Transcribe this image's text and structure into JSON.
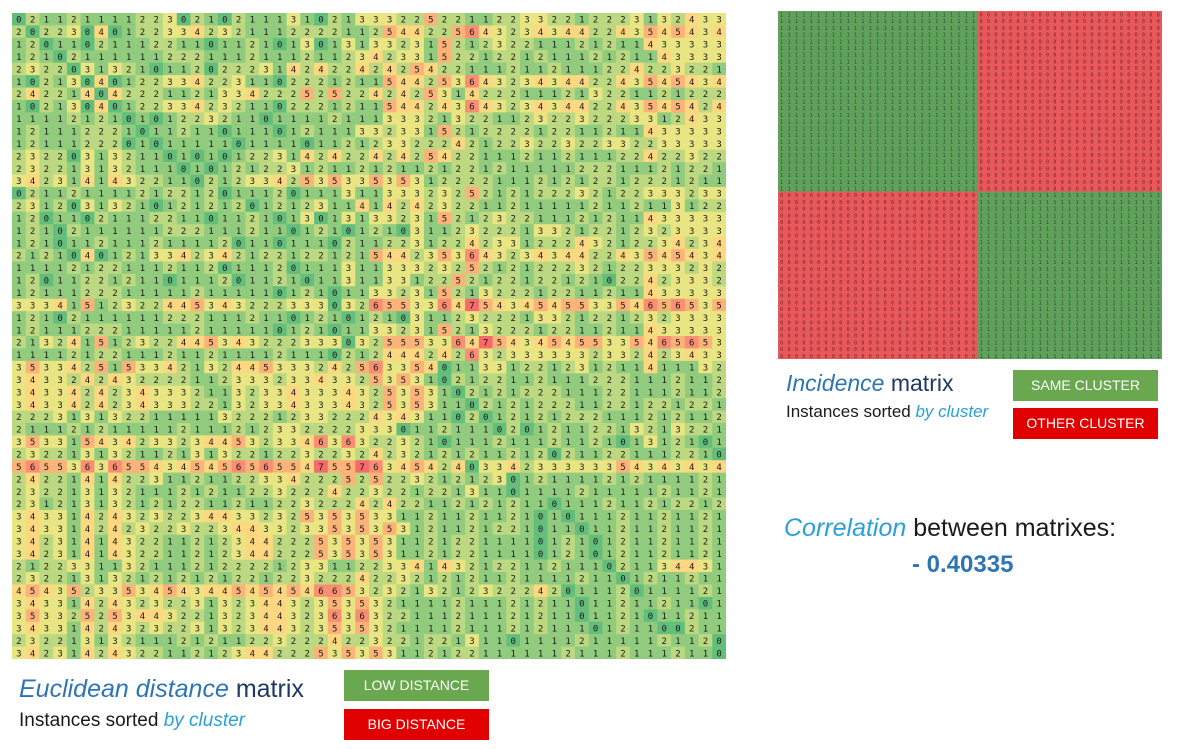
{
  "colors": {
    "accent": "#2aa0d8",
    "title_dark": "#1f3864",
    "same_cluster": "#5fa05b",
    "other_cluster": "#e8575a",
    "low_distance": "#6aa84f",
    "big_distance": "#e00000",
    "heat_low": "#63be7b",
    "heat_mid": "#ffeb84",
    "heat_high": "#f8696b"
  },
  "euclidean": {
    "title_accent": "Euclidean distance",
    "title_rest": " matrix",
    "subtitle_prefix": "Instances sorted ",
    "subtitle_accent": "by cluster",
    "legend_low": "LOW DISTANCE",
    "legend_high": "BIG DISTANCE",
    "rows": [
      "0 2 1 1 2 1 1 1 1 2 2 3 0 2 1 0 2 1 1 1 3 1 0 2 1 3 3 3 2 2 5 2 2 1 1 2 2 3 3 2 2 1 2 2 2 3 1 3 2 4 3 3 3 2",
      "2 0 2 2 3 0 4 0 1 2 2 3 3 4 2 3 2 1 1 1 2 2 2 2 1 1 2 5 4 4 2 2 5 6 4 3 2 3 4 3 4 4 2 2 4 3 5 4 5 4 3 4",
      "1 2 0 1 1 0 2 1 1 1 2 2 1 1 0 1 1 2 1 0 1 3 0 1 3 1 3 3 2 3 1 5 2 1 2 3 2 2 1 1 1 2 1 2 1 1 4 3 3 3 3 3",
      "1 2 1 0 2 1 1 1 1 1 1 2 2 2 1 1 1 2 1 1 1 2 1 1 2 3 4 2 3 3 1 5 2 2 1 2 2 1 2 1 1 1 2 1 2 1 1 4 3 3 3 3",
      "2 3 2 2 0 3 1 3 2 1 0 1 1 2 0 2 2 2 3 1 4 2 4 2 2 4 2 4 2 5 4 2 2 1 1 1 2 1 1 2 1 1 1 2 2 4 2 2 3 2 2 1",
      "1 0 2 1 3 0 4 0 1 2 2 3 3 4 2 2 3 1 1 0 2 2 2 1 2 1 1 5 4 4 2 5 3 6 4 3 2 3 4 3 4 4 2 2 4 3 5 4 5 4 3 4",
      "2 4 2 2 1 4 0 4 2 2 2 1 1 2 1 3 3 4 2 2 2 5 2 5 2 2 4 2 4 2 5 3 1 4 2 2 2 1 1 1 2 1 3 2 2 1 1 2 1 2 2 2",
      "1 0 2 1 3 0 4 0 1 2 2 3 3 4 2 3 2 1 1 0 2 2 2 1 2 1 1 5 4 4 2 4 3 6 4 3 2 3 4 3 4 4 2 2 4 3 5 4 5 4 2 4",
      "1 1 1 1 2 1 2 1 0 1 0 1 2 2 3 2 1 1 0 1 1 1 1 2 1 1 1 3 3 3 2 1 3 2 2 1 1 2 3 2 2 3 2 2 2 3 3 1 2 4 3 3",
      "1 2 1 1 1 2 2 2 1 0 1 1 2 1 1 0 1 1 1 0 1 2 1 1 1 3 3 2 3 3 1 5 2 1 2 2 2 2 1 2 2 1 1 2 1 1 4 3 3 3 3 3",
      "1 2 1 1 1 2 2 2 0 1 0 1 1 1 1 1 0 1 1 1 1 0 1 1 2 1 2 3 3 2 2 2 4 2 1 2 2 3 2 2 3 2 2 3 3 2 2 3 3 3 3 3",
      "2 3 2 2 0 3 1 3 2 1 1 0 1 0 1 0 1 2 2 3 1 4 2 4 2 2 4 2 4 2 5 4 2 2 1 1 1 2 1 1 2 1 1 1 2 2 4 2 2 3 2 2",
      "2 3 2 2 1 3 1 3 2 1 1 1 0 1 0 1 2 1 2 2 3 1 2 1 1 2 1 2 1 1 2 1 2 2 1 2 1 1 1 1 1 2 2 2 1 1 1 2 1 2 2 1",
      "3 4 2 3 1 4 1 4 3 2 2 1 1 0 2 1 2 3 3 4 2 5 3 5 3 3 5 3 5 3 1 2 2 2 2 1 1 1 2 1 2 1 2 2 1 2 2 2 1 2 1 1",
      "0 2 1 1 2 1 1 1 1 2 1 2 2 1 2 0 1 1 1 2 0 1 1 1 3 1 1 3 3 3 2 3 2 5 2 1 2 1 2 2 2 3 2 1 2 2 3 3 3 2 3 3",
      "2 3 1 2 0 3 1 3 2 1 0 1 2 1 2 1 2 0 1 2 1 2 3 1 1 4 1 4 2 4 2 3 2 2 1 1 2 1 1 1 1 1 2 1 1 2 1 1 3 1 2 2",
      "1 2 0 1 1 0 2 1 1 1 2 2 1 1 0 1 1 2 1 0 1 3 0 1 3 1 3 3 2 3 1 5 2 1 2 3 2 2 1 1 1 2 1 2 1 1 4 3 3 3 3 3",
      "1 2 1 0 2 1 1 1 1 1 1 2 2 2 1 1 1 2 1 1 0 1 2 1 0 1 2 1 0 3 1 1 2 3 2 2 2 1 3 3 2 1 2 2 1 2 3 2 3 3 3 3",
      "1 2 1 0 1 1 2 1 1 1 2 1 1 1 1 2 0 1 1 0 1 1 1 0 2 1 1 2 2 3 1 2 2 4 2 3 3 1 2 2 2 4 3 2 1 2 2 3 4 2 3 4",
      "2 1 2 1 0 4 0 1 2 1 3 3 4 2 3 4 2 1 2 2 1 2 2 1 2 1 5 4 4 2 3 5 3 6 4 3 2 3 4 3 4 4 2 2 4 3 5 4 5 4 3 4",
      "1 1 1 1 2 1 2 2 1 1 1 2 1 1 2 0 1 1 1 2 0 1 1 1 3 1 1 3 3 3 2 3 2 5 2 1 2 1 2 2 2 3 2 1 2 2 3 3 3 2 3 2",
      "1 2 0 1 1 2 2 1 2 1 1 0 1 1 1 2 0 1 1 2 1 0 1 1 3 1 1 3 3 1 2 2 5 2 1 2 2 1 2 2 1 2 1 0 2 2 4 2 3 3 3 2",
      "1 2 1 1 1 2 2 2 1 1 1 1 1 2 1 1 1 1 1 0 1 2 1 0 1 1 3 3 2 3 1 5 2 1 3 2 2 2 1 2 2 1 1 2 1 1 4 3 3 3 3 3",
      "3 3 3 4 1 5 1 2 3 2 2 4 4 5 3 4 3 2 2 2 3 3 3 0 3 2 6 5 5 3 3 6 4 7 5 4 3 4 5 4 5 5 3 3 5 4 6 5 6 5 3 5",
      "1 2 1 0 2 1 1 1 1 1 1 2 2 2 1 1 1 2 1 1 0 1 2 1 0 1 2 1 0 3 1 1 2 3 2 2 2 1 3 3 2 1 2 2 1 2 3 2 3 3 3 3",
      "1 2 1 1 1 2 2 2 1 1 1 1 1 2 1 1 1 1 1 0 1 2 1 0 1 1 3 3 2 3 1 5 2 1 3 2 2 2 1 2 2 1 1 2 1 1 4 3 3 3 3 3",
      "2 1 3 2 4 1 5 1 2 3 2 2 4 4 5 3 4 3 2 2 2 3 3 3 0 3 2 5 5 5 3 3 6 4 7 5 4 3 4 5 4 5 5 3 3 5 4 6 5 6 5 3",
      "1 1 1 1 2 1 2 2 1 1 1 2 1 1 2 1 1 1 1 2 1 1 1 0 2 1 2 4 4 4 2 4 2 6 3 2 3 3 3 3 3 3 2 3 3 2 4 2 3 4 3 3",
      "3 5 3 3 4 2 5 1 5 3 3 4 2 1 3 2 4 4 5 3 3 3 2 4 2 5 6 3 3 5 4 0 1 1 3 3 1 2 2 1 2 3 1 2 1 1 4 1 1 1 3 2",
      "3 4 3 3 2 4 2 4 3 2 2 2 2 1 1 2 3 3 3 2 3 3 4 3 3 2 5 3 5 3 1 0 2 1 2 2 1 1 2 1 1 1 2 2 2 1 1 1 2 1 1 2",
      "3 4 3 3 4 2 4 2 3 4 3 3 3 2 1 1 3 2 3 3 4 3 3 3 4 3 2 5 3 5 3 1 0 2 1 2 1 2 2 2 1 1 1 2 2 1 1 1 2 1 1 2",
      "3 4 3 3 4 2 4 2 3 4 3 3 3 2 2 1 3 2 3 3 4 3 3 3 4 3 2 5 3 5 3 1 1 0 2 1 2 1 2 2 2 1 1 2 2 1 2 2 1 2 2 1",
      "2 2 2 3 1 3 1 3 2 2 1 1 1 1 1 3 2 2 2 1 2 3 3 2 2 2 4 3 4 3 1 1 0 2 0 1 2 1 2 1 2 2 2 1 1 1 2 1 2 1 1 2",
      "2 1 1 1 2 1 2 1 1 1 1 1 2 1 1 1 2 1 2 3 3 2 2 2 2 3 3 3 0 1 1 2 1 1 1 0 2 0 1 2 1 1 2 2 1 3 2 1 3 2 2 1",
      "3 5 3 3 1 5 4 3 4 2 3 3 2 3 4 4 5 3 2 3 3 4 6 3 6 3 2 2 3 2 1 0 1 1 1 2 1 1 1 2 1 1 2 1 0 1 3 1 2 1 0 1",
      "2 3 2 2 1 3 1 3 2 1 1 2 1 3 1 3 2 2 1 2 2 3 2 2 3 2 4 2 3 2 1 2 1 2 1 1 2 1 2 0 2 1 1 2 2 1 1 1 2 2 1 0",
      "5 6 5 5 3 6 3 6 5 5 4 3 4 5 4 5 6 5 6 5 5 4 7 5 5 7 6 3 4 5 4 2 4 0 3 3 4 2 3 3 3 3 3 3 5 4 3 4 3 4 3 4",
      "2 4 2 2 1 4 1 4 2 2 3 1 1 2 1 1 2 2 3 3 4 2 2 2 5 2 5 2 2 3 2 1 2 1 2 3 0 1 2 1 1 1 1 2 1 2 1 1 1 1 2 1",
      "2 3 2 2 1 3 1 3 2 1 1 1 2 1 2 1 1 2 2 3 2 2 2 4 2 2 3 2 2 1 2 2 1 3 1 1 0 1 1 1 1 2 1 1 1 1 1 2 1 1 2 1",
      "2 3 1 2 1 3 1 3 2 1 2 1 2 2 1 1 2 1 1 2 2 3 2 2 2 4 2 4 2 2 1 1 2 1 2 1 2 1 1 0 1 1 1 2 1 1 2 1 2 2 1 2",
      "3 4 3 3 1 4 2 4 3 2 3 2 2 3 4 4 3 3 2 3 2 5 3 5 3 5 3 3 1 1 2 1 1 2 1 1 2 1 0 1 0 1 1 1 2 1 1 2 1 1 2 1",
      "3 4 3 3 1 4 2 4 2 3 2 2 3 2 2 3 4 4 3 3 2 3 3 5 3 5 3 5 3 1 2 1 1 2 1 2 2 1 0 1 1 0 1 1 2 1 1 2 1 1 2 1",
      "3 4 2 3 1 4 1 4 3 2 2 1 1 2 1 2 3 4 4 2 2 2 5 3 5 3 5 3 1 1 2 1 2 2 1 1 1 1 0 1 2 1 0 1 2 1 1 2 1 1 2 1",
      "3 4 2 3 1 4 1 4 3 2 2 1 1 2 1 2 3 4 4 2 2 2 5 3 5 3 5 3 1 1 2 1 2 2 1 1 1 1 0 1 2 1 0 1 2 1 1 2 1 1 2 1",
      "2 1 2 2 3 3 1 1 3 2 1 1 1 2 1 2 2 2 2 1 2 3 3 1 1 2 2 3 3 4 1 4 3 2 1 2 2 1 1 2 1 1 1 0 2 1 1 3 4 4 3 1",
      "2 3 2 2 1 3 1 3 2 1 2 1 2 1 2 1 2 2 1 2 2 3 2 2 2 4 2 2 3 2 1 2 1 2 1 1 2 1 1 1 1 2 1 1 0 1 2 1 1 2 1 1",
      "4 5 4 3 5 2 3 3 5 3 4 5 4 3 4 4 5 4 5 4 5 4 6 6 5 3 2 3 2 1 3 2 1 2 3 2 2 2 4 2 0 1 1 1 2 0 1 1 1 1 2 1",
      "3 4 3 3 1 4 2 4 3 2 3 2 2 3 1 3 2 3 4 4 3 2 3 5 3 5 3 2 1 1 1 1 2 1 1 1 2 1 2 1 1 0 1 1 2 1 1 2 1 1 0 1",
      "3 5 3 3 2 5 2 5 3 4 4 3 2 2 1 3 2 3 4 4 3 2 3 6 3 6 3 2 2 1 1 1 2 1 1 1 2 1 2 1 1 0 1 1 2 1 0 1 1 2 1 1",
      "3 4 3 3 1 4 2 4 3 2 3 2 2 3 1 3 2 3 4 4 3 2 3 5 3 5 3 2 1 1 1 1 2 1 1 1 2 1 2 1 1 1 0 1 2 1 1 0 0 2 1 1",
      "2 3 2 2 1 3 1 3 2 1 1 1 2 1 2 1 1 2 2 3 2 2 2 4 2 2 3 2 2 1 2 2 1 3 1 1 0 1 1 1 1 2 1 1 1 1 1 2 1 1 2 0",
      "3 4 2 3 1 4 2 4 3 2 2 1 1 2 1 2 3 4 4 2 2 2 5 3 5 3 5 3 1 1 2 1 2 2 1 1 1 1 1 1 2 1 1 1 2 1 1 1 2 1 1 0"
    ]
  },
  "incidence": {
    "title_accent": "Incidence",
    "title_rest": " matrix",
    "subtitle_prefix": "Instances sorted ",
    "subtitle_accent": "by cluster",
    "legend_same": "SAME CLUSTER",
    "legend_other": "OTHER CLUSTER",
    "size": 52,
    "cluster_boundary": 27
  },
  "correlation": {
    "label_accent": "Correlation",
    "label_rest": " between matrixes:",
    "value": "- 0.40335"
  }
}
